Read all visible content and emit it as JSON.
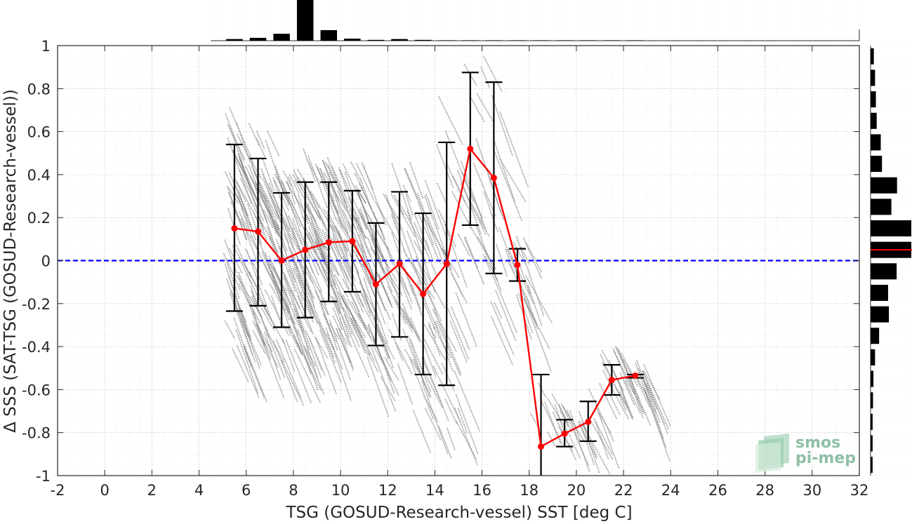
{
  "chart_data": {
    "type": "scatter",
    "xlabel": "TSG (GOSUD-Research-vessel) SST [deg C]",
    "ylabel": "Δ SSS (SAT-TSG (GOSUD-Research-vessel))",
    "xlim": [
      -2,
      32
    ],
    "ylim": [
      -1,
      1
    ],
    "xticks": [
      -2,
      0,
      2,
      4,
      6,
      8,
      10,
      12,
      14,
      16,
      18,
      20,
      22,
      24,
      26,
      28,
      30,
      32
    ],
    "yticks": [
      -1,
      -0.8,
      -0.6,
      -0.4,
      -0.2,
      0,
      0.2,
      0.4,
      0.6,
      0.8,
      1
    ],
    "grid": true,
    "zero_line": {
      "y": 0,
      "color": "#0000ff",
      "style": "dashed"
    },
    "binned_mean": {
      "color": "#ff0000",
      "x": [
        5.5,
        6.5,
        7.5,
        8.5,
        9.5,
        10.5,
        11.5,
        12.5,
        13.5,
        14.5,
        15.5,
        16.5,
        17.5,
        18.5,
        19.5,
        20.5,
        21.5,
        22.5
      ],
      "y": [
        0.15,
        0.135,
        0.0,
        0.05,
        0.085,
        0.09,
        -0.11,
        -0.015,
        -0.155,
        -0.015,
        0.52,
        0.385,
        -0.02,
        -0.865,
        -0.805,
        -0.75,
        -0.555,
        -0.535
      ],
      "err_low": [
        -0.235,
        -0.21,
        -0.31,
        -0.265,
        -0.19,
        -0.145,
        -0.395,
        -0.355,
        -0.53,
        -0.58,
        0.165,
        -0.06,
        -0.095,
        -1.0,
        -0.865,
        -0.84,
        -0.625,
        -0.545
      ],
      "err_high": [
        0.54,
        0.475,
        0.315,
        0.365,
        0.365,
        0.325,
        0.175,
        0.32,
        0.22,
        0.55,
        0.875,
        0.83,
        0.055,
        -0.53,
        -0.74,
        -0.655,
        -0.485,
        -0.53
      ]
    },
    "scatter_color": "#808080",
    "histogram_x": {
      "bins": [
        5.5,
        6.5,
        7.5,
        8.5,
        9.5,
        10.5,
        11.5,
        12.5,
        13.5,
        14.5,
        15.5,
        16.5,
        17.5,
        18.5,
        19.5,
        20.5,
        21.5,
        22.5
      ],
      "counts": [
        0.04,
        0.07,
        0.17,
        1.0,
        0.26,
        0.05,
        0.02,
        0.04,
        0.02,
        0.01,
        0.01,
        0.01,
        0.01,
        0.01,
        0.01,
        0.01,
        0.01,
        0.01
      ]
    },
    "histogram_y": {
      "bin_edges": [
        -1,
        -0.9,
        -0.8,
        -0.7,
        -0.6,
        -0.5,
        -0.4,
        -0.3,
        -0.2,
        -0.1,
        0,
        0.1,
        0.2,
        0.3,
        0.4,
        0.5,
        0.6,
        0.7,
        0.8,
        0.9,
        1
      ],
      "counts": [
        0.05,
        0.05,
        0.05,
        0.06,
        0.07,
        0.11,
        0.21,
        0.45,
        0.43,
        0.64,
        1.0,
        1.0,
        0.51,
        0.65,
        0.28,
        0.25,
        0.15,
        0.13,
        0.11,
        0.08
      ],
      "mean_line": 0.05,
      "mean_line_color": "#ff0000"
    }
  },
  "logo": {
    "line1": "smos",
    "line2": "pi-mep"
  }
}
